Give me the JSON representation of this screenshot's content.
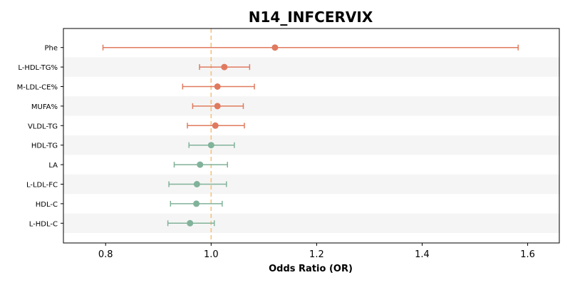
{
  "chart_data": {
    "type": "forest",
    "title": "N14_INFCERVIX",
    "xlabel": "Odds Ratio (OR)",
    "ylabel": "",
    "xlim": [
      0.72,
      1.66
    ],
    "xticks": [
      0.8,
      1.0,
      1.2,
      1.4,
      1.6
    ],
    "xtick_labels": [
      "0.8",
      "1.0",
      "1.2",
      "1.4",
      "1.6"
    ],
    "reference_line": 1.0,
    "reference_color": "#f5c27a",
    "positive_color": "#e07a5f",
    "negative_color": "#81b29a",
    "band_color": "#f5f5f5",
    "categories": [
      "Phe",
      "L-HDL-TG%",
      "M-LDL-CE%",
      "MUFA%",
      "VLDL-TG",
      "HDL-TG",
      "LA",
      "L-LDL-FC",
      "HDL-C",
      "L-HDL-C"
    ],
    "or": [
      1.121,
      1.025,
      1.012,
      1.012,
      1.008,
      1.0,
      0.979,
      0.973,
      0.972,
      0.96
    ],
    "ci_lower": [
      0.795,
      0.978,
      0.946,
      0.965,
      0.955,
      0.958,
      0.93,
      0.92,
      0.923,
      0.918
    ],
    "ci_upper": [
      1.582,
      1.073,
      1.082,
      1.061,
      1.063,
      1.044,
      1.031,
      1.029,
      1.021,
      1.006
    ],
    "grid": false,
    "legend": "none"
  }
}
